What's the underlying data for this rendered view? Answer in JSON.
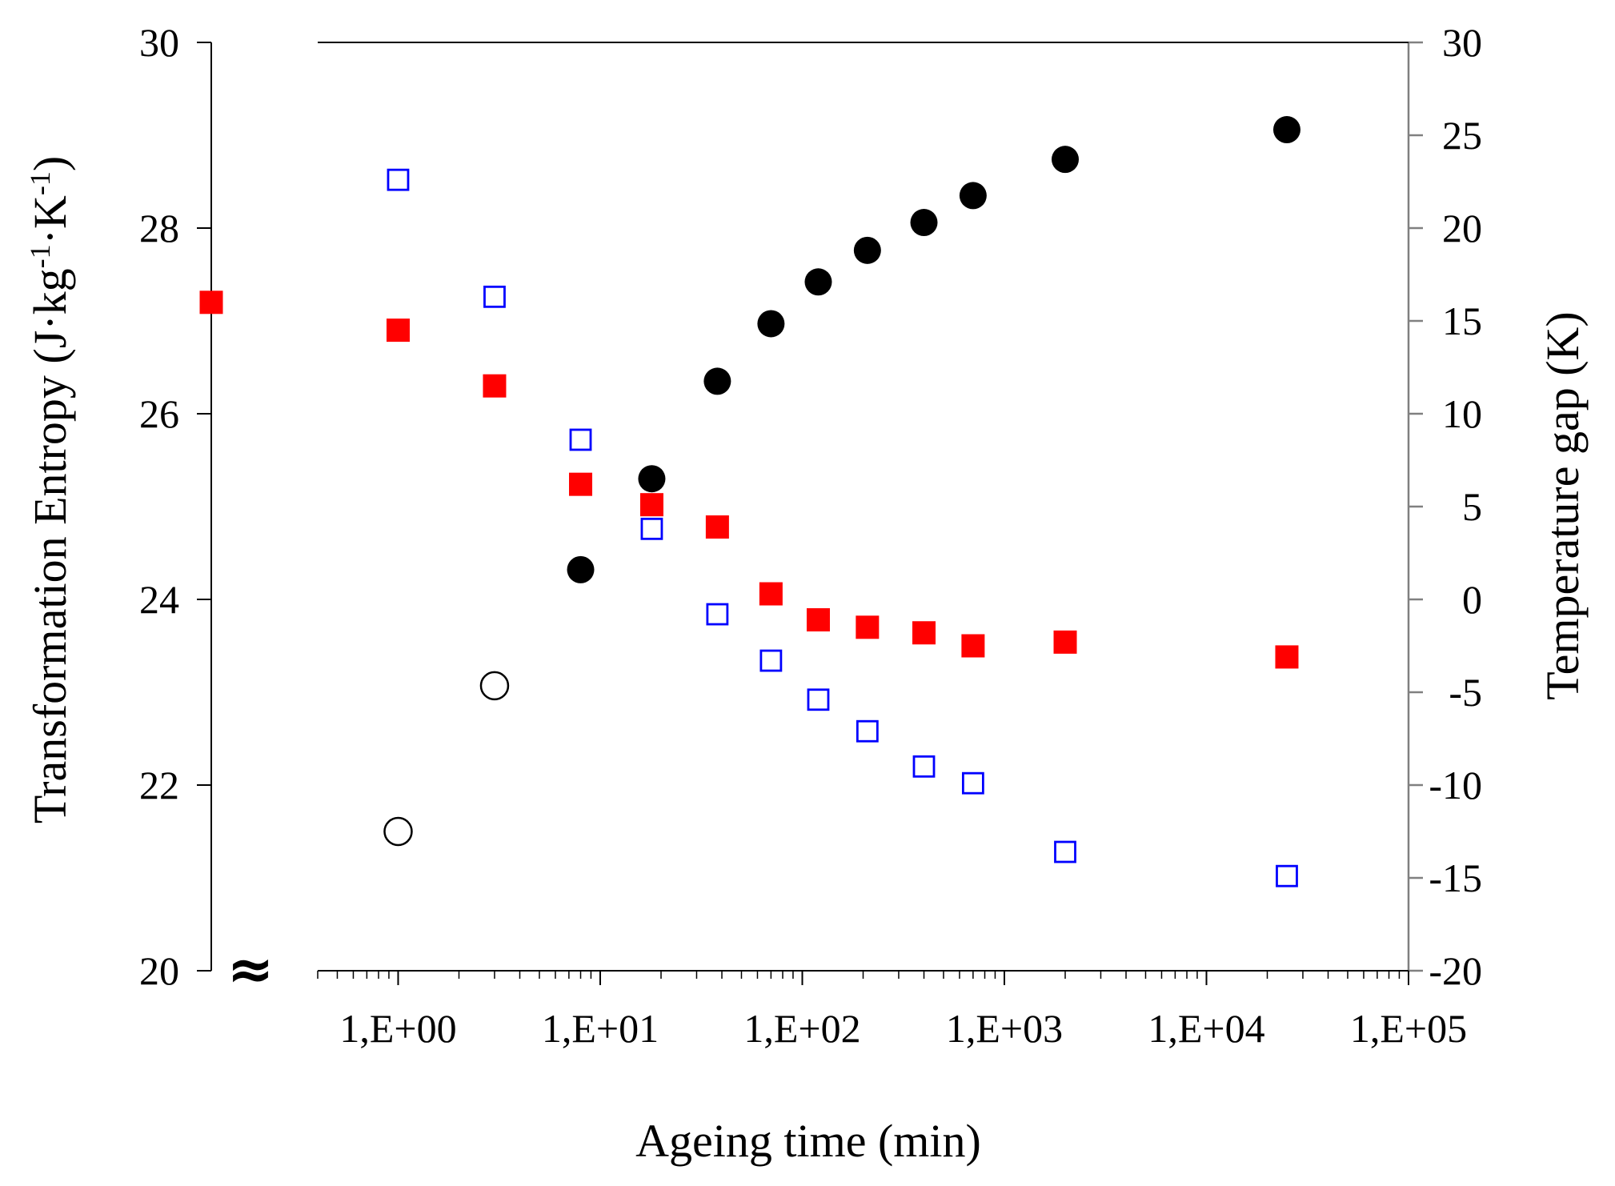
{
  "chart_data": {
    "type": "scatter",
    "title": "",
    "xlabel": "Ageing time (min)",
    "ylabel_left": "Transformation Entropy (J·kg-1·K-1)",
    "ylabel_left_parts": {
      "main": "Transformation Entropy (J·kg",
      "sup1": "-1",
      "mid": "·K",
      "sup2": "-1",
      "end": ")"
    },
    "ylabel_right": "Temperature gap (K)",
    "x_scale": "log",
    "xlim": [
      0.4,
      100000
    ],
    "ylim_left": [
      20,
      30
    ],
    "ylim_right": [
      -20,
      30
    ],
    "x_ticks": [
      1,
      10,
      100,
      1000,
      10000,
      100000
    ],
    "x_tick_labels": [
      "1,E+00",
      "1,E+01",
      "1,E+02",
      "1,E+03",
      "1,E+04",
      "1,E+05"
    ],
    "y_left_ticks": [
      20,
      22,
      24,
      26,
      28,
      30
    ],
    "y_left_tick_labels": [
      "20",
      "22",
      "24",
      "26",
      "28",
      "30"
    ],
    "y_right_ticks": [
      -20,
      -15,
      -10,
      -5,
      0,
      5,
      10,
      15,
      20,
      25,
      30
    ],
    "y_right_tick_labels": [
      "-20",
      "-15",
      "-10",
      "-5",
      "0",
      "5",
      "10",
      "15",
      "20",
      "25",
      "30"
    ],
    "axis_break_symbol": "≈",
    "grid": false,
    "legend": "none",
    "colors": {
      "filled_square": "#ff0000",
      "open_square": "#0000ff",
      "circle": "#000000",
      "right_axis": "#808080"
    },
    "series": [
      {
        "axis": "left",
        "marker": "filled-circle",
        "points": [
          {
            "x": 8,
            "y": 24.32
          },
          {
            "x": 18,
            "y": 25.3
          },
          {
            "x": 38,
            "y": 26.35
          },
          {
            "x": 70,
            "y": 26.97
          },
          {
            "x": 120,
            "y": 27.42
          },
          {
            "x": 210,
            "y": 27.76
          },
          {
            "x": 400,
            "y": 28.06
          },
          {
            "x": 700,
            "y": 28.35
          },
          {
            "x": 2000,
            "y": 28.74
          },
          {
            "x": 25000,
            "y": 29.06
          }
        ]
      },
      {
        "axis": "left",
        "marker": "open-circle",
        "points": [
          {
            "x": 1,
            "y": 21.5
          },
          {
            "x": 3,
            "y": 23.07
          }
        ]
      },
      {
        "axis": "right",
        "marker": "filled-square",
        "unaged_value": 16.0,
        "points": [
          {
            "x": 1,
            "y": 14.5
          },
          {
            "x": 3,
            "y": 11.5
          },
          {
            "x": 8,
            "y": 6.2
          },
          {
            "x": 18,
            "y": 5.1
          },
          {
            "x": 38,
            "y": 3.9
          },
          {
            "x": 70,
            "y": 0.3
          },
          {
            "x": 120,
            "y": -1.1
          },
          {
            "x": 210,
            "y": -1.5
          },
          {
            "x": 400,
            "y": -1.8
          },
          {
            "x": 700,
            "y": -2.5
          },
          {
            "x": 2000,
            "y": -2.3
          },
          {
            "x": 25000,
            "y": -3.1
          }
        ]
      },
      {
        "axis": "right",
        "marker": "open-square",
        "points": [
          {
            "x": 1,
            "y": 22.6
          },
          {
            "x": 3,
            "y": 16.3
          },
          {
            "x": 8,
            "y": 8.6
          },
          {
            "x": 18,
            "y": 3.8
          },
          {
            "x": 38,
            "y": -0.8
          },
          {
            "x": 70,
            "y": -3.3
          },
          {
            "x": 120,
            "y": -5.4
          },
          {
            "x": 210,
            "y": -7.1
          },
          {
            "x": 400,
            "y": -9.0
          },
          {
            "x": 700,
            "y": -9.9
          },
          {
            "x": 2000,
            "y": -13.6
          },
          {
            "x": 25000,
            "y": -14.9
          }
        ]
      }
    ]
  }
}
